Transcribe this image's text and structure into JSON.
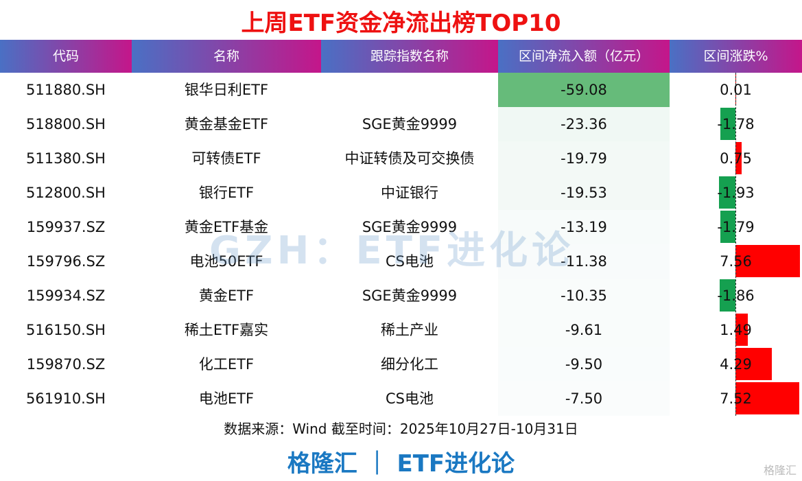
{
  "title": "上周ETF资金净流出榜TOP10",
  "columns": [
    "代码",
    "名称",
    "跟踪指数名称",
    "区间净流入额（亿元）",
    "区间涨跌%"
  ],
  "rows": [
    {
      "code": "511880.SH",
      "name": "银华日利ETF",
      "index": "",
      "flow": "-59.08",
      "change": "0.01"
    },
    {
      "code": "518800.SH",
      "name": "黄金基金ETF",
      "index": "SGE黄金9999",
      "flow": "-23.36",
      "change": "-1.78"
    },
    {
      "code": "511380.SH",
      "name": "可转债ETF",
      "index": "中证转债及可交换债",
      "flow": "-19.79",
      "change": "0.75"
    },
    {
      "code": "512800.SH",
      "name": "银行ETF",
      "index": "中证银行",
      "flow": "-19.53",
      "change": "-1.93"
    },
    {
      "code": "159937.SZ",
      "name": "黄金ETF基金",
      "index": "SGE黄金9999",
      "flow": "-13.19",
      "change": "-1.79"
    },
    {
      "code": "159796.SZ",
      "name": "电池50ETF",
      "index": "CS电池",
      "flow": "-11.38",
      "change": "7.56"
    },
    {
      "code": "159934.SZ",
      "name": "黄金ETF",
      "index": "SGE黄金9999",
      "flow": "-10.35",
      "change": "-1.86"
    },
    {
      "code": "516150.SH",
      "name": "稀土ETF嘉实",
      "index": "稀土产业",
      "flow": "-9.61",
      "change": "1.49"
    },
    {
      "code": "159870.SZ",
      "name": "化工ETF",
      "index": "细分化工",
      "flow": "-9.50",
      "change": "4.29"
    },
    {
      "code": "561910.SH",
      "name": "电池ETF",
      "index": "CS电池",
      "flow": "-7.50",
      "change": "7.52"
    }
  ],
  "watermark": "GZH：ETF进化论",
  "source": "数据来源：Wind 截至时间：2025年10月27日-10月31日",
  "brand": "格隆汇 ｜ ETF进化论",
  "corner_logo": "格隆汇",
  "colors": {
    "title": "#ee1111",
    "positive_bar": "#ff0000",
    "negative_bar": "#15a050",
    "flow_max": "#66bb7a",
    "brand": "#1a78c2"
  }
}
